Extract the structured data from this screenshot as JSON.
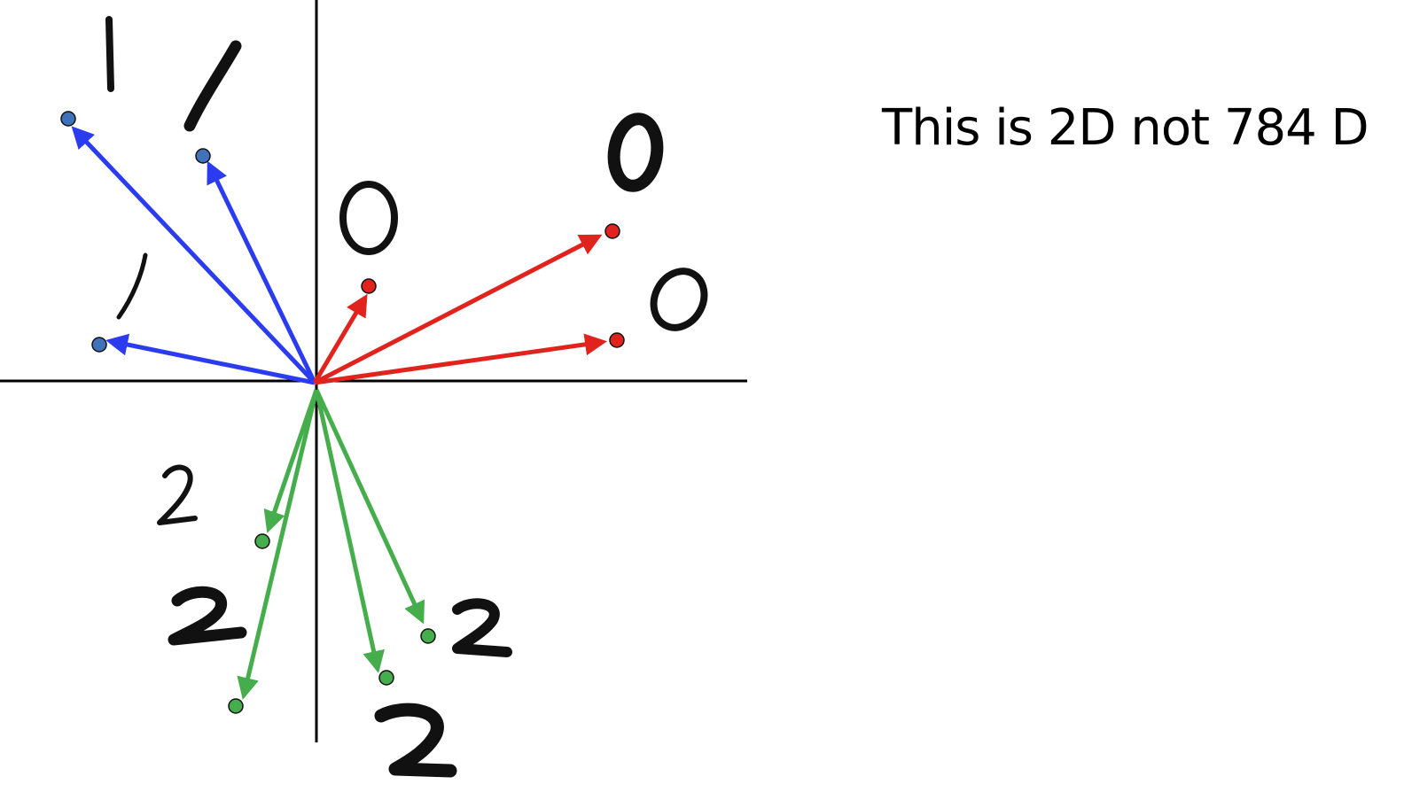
{
  "caption": "This is 2D not 784 D",
  "colors": {
    "class_1": "#2b3cf0",
    "class_0": "#e0231c",
    "class_2": "#45ad4b",
    "axis": "#000000"
  },
  "groups": [
    {
      "label": "1",
      "color": "#2b3cf0",
      "vector_count": 3
    },
    {
      "label": "0",
      "color": "#e0231c",
      "vector_count": 3
    },
    {
      "label": "2",
      "color": "#45ad4b",
      "vector_count": 4
    }
  ],
  "digit_sketches": {
    "ones": "1",
    "zeros": "0",
    "twos": "2"
  }
}
